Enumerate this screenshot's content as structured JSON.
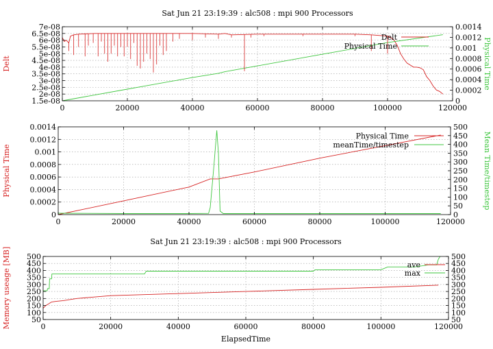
{
  "colors": {
    "red": "#d62020",
    "green": "#3ec63e",
    "grid": "#9a9a9a",
    "axis": "#000000"
  },
  "chart_data": [
    {
      "type": "line",
      "title": "Sat Jun 21 23:19:39 : alc508 : mpi 900 Processors",
      "xlabel": "",
      "ylabel": "Delt",
      "y2label": "Physical Time",
      "xlim": [
        0,
        120000
      ],
      "ylim": [
        1.5e-08,
        7e-08
      ],
      "y2lim": [
        0,
        0.0014
      ],
      "grid": true,
      "legend_position": "top-right",
      "xticks": [
        "0",
        "20000",
        "40000",
        "60000",
        "80000",
        "100000",
        "120000"
      ],
      "yticks": [
        "1.5e-08",
        "2e-08",
        "2.5e-08",
        "3e-08",
        "3.5e-08",
        "4e-08",
        "4.5e-08",
        "5e-08",
        "5.5e-08",
        "6e-08",
        "6.5e-08",
        "7e-08"
      ],
      "y2ticks": [
        "0",
        "0.0002",
        "0.0004",
        "0.0006",
        "0.0008",
        "0.001",
        "0.0012",
        "0.0014"
      ],
      "series": [
        {
          "name": "Delt",
          "axis": "y",
          "color": "red",
          "x": [
            0,
            600,
            1200,
            2000,
            2500,
            3500,
            5000,
            10000,
            20000,
            30000,
            40000,
            48000,
            50000,
            52000,
            60000,
            70000,
            80000,
            90000,
            95000,
            100000,
            101000,
            102000,
            103000,
            104000,
            105000,
            106000,
            107000,
            108000,
            109000,
            110000,
            111000,
            112000,
            113000,
            114000,
            115000,
            116000,
            117000
          ],
          "y": [
            6.2e-08,
            5.9e-08,
            6e-08,
            5.8e-08,
            6.3e-08,
            6.4e-08,
            6.45e-08,
            6.5e-08,
            6.5e-08,
            6.5e-08,
            6.5e-08,
            6.45e-08,
            6.5e-08,
            6.4e-08,
            6.45e-08,
            6.45e-08,
            6.45e-08,
            6.45e-08,
            6.4e-08,
            6.3e-08,
            6.2e-08,
            6e-08,
            5.6e-08,
            5e-08,
            4.6e-08,
            4.3e-08,
            4.15e-08,
            4e-08,
            4e-08,
            3.95e-08,
            3.8e-08,
            3.3e-08,
            3e-08,
            2.6e-08,
            2.3e-08,
            2.2e-08,
            2e-08
          ]
        },
        {
          "name": "Physical Time",
          "axis": "y2",
          "color": "green",
          "x": [
            0,
            20000,
            40000,
            48000,
            50000,
            60000,
            80000,
            100000,
            117000
          ],
          "y": [
            0,
            0.00022,
            0.00044,
            0.00052,
            0.00055,
            0.00066,
            0.00088,
            0.0011,
            0.00125
          ]
        }
      ],
      "spikes": {
        "x": [
          2000,
          3500,
          5000,
          7000,
          8000,
          9500,
          11000,
          12000,
          13000,
          14000,
          15000,
          16000,
          17000,
          18000,
          19000,
          20000,
          21000,
          22000,
          23000,
          24000,
          25000,
          26000,
          27000,
          28000,
          29000,
          30000,
          31000,
          32000,
          34000,
          36000,
          40000,
          44000,
          48000,
          52000,
          56000,
          58000,
          62000,
          74000,
          90000,
          95000,
          100000
        ],
        "y": [
          5.2e-08,
          4.9e-08,
          5.5e-08,
          4.8e-08,
          5.6e-08,
          5.8e-08,
          4.8e-08,
          5.9e-08,
          5e-08,
          4.4e-08,
          5e-08,
          5.6e-08,
          4.8e-08,
          5.5e-08,
          4.8e-08,
          5.5e-08,
          4.6e-08,
          5.8e-08,
          4.1e-08,
          3.9e-08,
          4.4e-08,
          5e-08,
          4.6e-08,
          3.6e-08,
          4.2e-08,
          5.6e-08,
          4.9e-08,
          5.2e-08,
          5.9e-08,
          6.1e-08,
          6e-08,
          6.2e-08,
          6.1e-08,
          6.2e-08,
          3.7e-08,
          6.2e-08,
          6.3e-08,
          6.3e-08,
          6.3e-08,
          5.2e-08,
          5e-08
        ]
      }
    },
    {
      "type": "line",
      "title": "",
      "xlabel": "",
      "ylabel": "Physical Time",
      "y2label": "Mean Time/timestep",
      "xlim": [
        0,
        120000
      ],
      "ylim": [
        0,
        0.0014
      ],
      "y2lim": [
        0,
        500
      ],
      "grid": true,
      "legend_position": "top-right",
      "xticks": [
        "0",
        "20000",
        "40000",
        "60000",
        "80000",
        "100000",
        "120000"
      ],
      "yticks": [
        "0",
        "0.0002",
        "0.0004",
        "0.0006",
        "0.0008",
        "0.001",
        "0.0012",
        "0.0014"
      ],
      "y2ticks": [
        "0",
        "50",
        "100",
        "150",
        "200",
        "250",
        "300",
        "350",
        "400",
        "450",
        "500"
      ],
      "series": [
        {
          "name": "Physical Time",
          "axis": "y",
          "color": "red",
          "x": [
            0,
            20000,
            40000,
            46500,
            49000,
            60000,
            80000,
            100000,
            117000
          ],
          "y": [
            0,
            0.00022,
            0.00044,
            0.00057,
            0.00057,
            0.00068,
            0.0009,
            0.0011,
            0.00127
          ]
        },
        {
          "name": "meanTime/timestep",
          "axis": "y2",
          "color": "green",
          "x": [
            0,
            20000,
            40000,
            46000,
            46500,
            47500,
            48500,
            49000,
            49500,
            50500,
            60000,
            80000,
            100000,
            117000
          ],
          "y": [
            8,
            6,
            6,
            7,
            40,
            250,
            480,
            350,
            20,
            6,
            6,
            6,
            6,
            6
          ]
        }
      ]
    },
    {
      "type": "line",
      "title": "Sat Jun 21 23:19:39 : alc508 : mpi 900 Processors",
      "xlabel": "ElapsedTime",
      "ylabel": "Memory useage [MB]",
      "y2label": "",
      "xlim": [
        0,
        120000
      ],
      "ylim": [
        50,
        500
      ],
      "y2lim": [
        50,
        500
      ],
      "grid": true,
      "legend_position": "top-right",
      "xticks": [
        "0",
        "20000",
        "40000",
        "60000",
        "80000",
        "100000",
        "120000"
      ],
      "yticks": [
        "50",
        "100",
        "150",
        "200",
        "250",
        "300",
        "350",
        "400",
        "450",
        "500"
      ],
      "y2ticks": [
        "50",
        "100",
        "150",
        "200",
        "250",
        "300",
        "350",
        "400",
        "450",
        "500"
      ],
      "series": [
        {
          "name": "ave",
          "axis": "y",
          "color": "red",
          "x": [
            0,
            800,
            1500,
            2500,
            4000,
            6000,
            10000,
            20000,
            40000,
            60000,
            80000,
            100000,
            117000
          ],
          "y": [
            130,
            150,
            160,
            175,
            180,
            185,
            200,
            220,
            235,
            250,
            265,
            280,
            295
          ]
        },
        {
          "name": "max",
          "axis": "y",
          "color": "green",
          "x": [
            0,
            1200,
            1300,
            1800,
            1900,
            2500,
            2600,
            30000,
            30500,
            80000,
            80500,
            100000,
            102000,
            110000,
            114000,
            116500,
            117000,
            117500
          ],
          "y": [
            255,
            255,
            270,
            270,
            340,
            340,
            375,
            375,
            395,
            395,
            405,
            405,
            425,
            425,
            440,
            440,
            480,
            500
          ]
        }
      ]
    }
  ]
}
